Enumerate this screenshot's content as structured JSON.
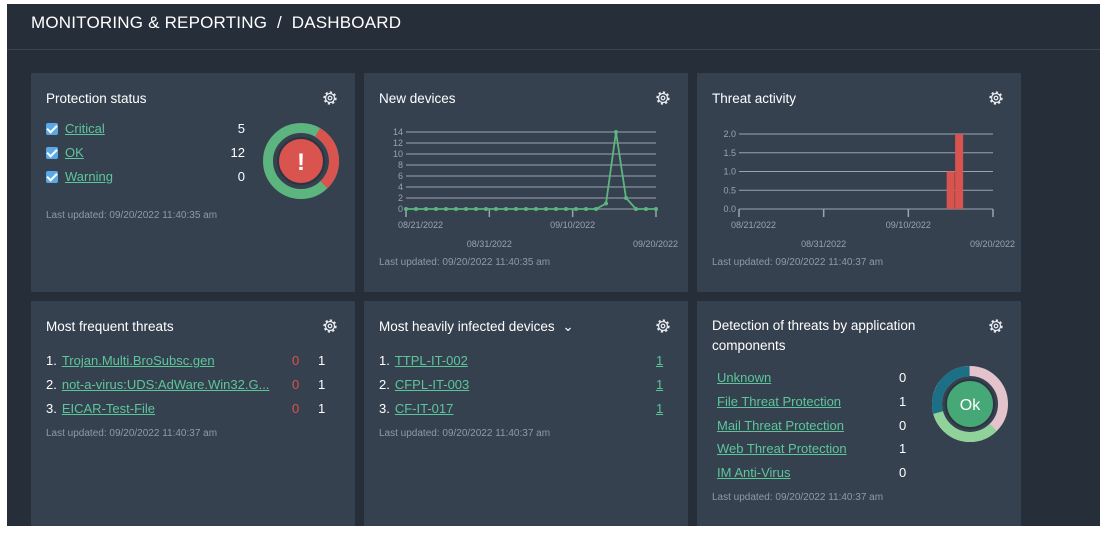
{
  "header": {
    "title": "MONITORING & REPORTING  /  DASHBOARD"
  },
  "protection": {
    "title": "Protection status",
    "items": [
      {
        "label": "Critical",
        "value": "5"
      },
      {
        "label": "OK",
        "value": "12"
      },
      {
        "label": "Warning",
        "value": "0"
      }
    ],
    "badge": "!",
    "updated": "Last updated: 09/20/2022 11:40:35 am",
    "colors": {
      "critical": "#d9534f",
      "ok": "#5cb57f"
    }
  },
  "new_devices": {
    "title": "New devices",
    "updated": "Last updated: 09/20/2022 11:40:35 am",
    "chart_data": {
      "type": "line",
      "x_labels": [
        "08/21/2022",
        "08/31/2022",
        "09/10/2022",
        "09/20/2022"
      ],
      "y_ticks": [
        "14",
        "12",
        "10",
        "8",
        "6",
        "4",
        "2",
        "0"
      ],
      "ylim": [
        0,
        14
      ],
      "values": [
        0,
        0,
        0,
        0,
        0,
        0,
        0,
        0,
        0,
        0,
        0,
        0,
        0,
        0,
        0,
        0,
        0,
        0,
        0,
        0,
        1,
        14,
        2,
        0,
        0,
        0
      ],
      "color": "#5cb57f"
    }
  },
  "threat_activity": {
    "title": "Threat activity",
    "updated": "Last updated: 09/20/2022 11:40:37 am",
    "chart_data": {
      "type": "bar",
      "x_labels": [
        "08/21/2022",
        "08/31/2022",
        "09/10/2022",
        "09/20/2022"
      ],
      "y_ticks": [
        "2.0",
        "1.5",
        "1.0",
        "0.5",
        "0.0"
      ],
      "ylim": [
        0,
        2
      ],
      "bars": [
        {
          "date": "09/15/2022",
          "value": 1
        },
        {
          "date": "09/16/2022",
          "value": 2
        }
      ],
      "color": "#d9534f"
    }
  },
  "frequent_threats": {
    "title": "Most frequent threats",
    "items": [
      {
        "index": "1.",
        "name": "Trojan.Multi.BroSubsc.gen",
        "red": "0",
        "count": "1"
      },
      {
        "index": "2.",
        "name": "not-a-virus:UDS:AdWare.Win32.G...",
        "red": "0",
        "count": "1"
      },
      {
        "index": "3.",
        "name": "EICAR-Test-File",
        "red": "0",
        "count": "1"
      }
    ],
    "updated": "Last updated: 09/20/2022 11:40:37 am"
  },
  "infected_devices": {
    "title": "Most heavily infected devices",
    "chevron": "⌄",
    "items": [
      {
        "index": "1.",
        "name": "TTPL-IT-002",
        "count": "1"
      },
      {
        "index": "2.",
        "name": "CFPL-IT-003",
        "count": "1"
      },
      {
        "index": "3.",
        "name": "CF-IT-017",
        "count": "1"
      }
    ],
    "updated": "Last updated: 09/20/2022 11:40:37 am"
  },
  "app_components": {
    "title_line1": "Detection of threats by application",
    "title_line2": "components",
    "items": [
      {
        "label": "Unknown",
        "value": "0"
      },
      {
        "label": "File Threat Protection",
        "value": "1"
      },
      {
        "label": "Mail Threat Protection",
        "value": "0"
      },
      {
        "label": "Web Threat Protection",
        "value": "1"
      },
      {
        "label": "IM Anti-Virus",
        "value": "0"
      }
    ],
    "badge": "Ok",
    "updated": "Last updated: 09/20/2022 11:40:37 am"
  }
}
